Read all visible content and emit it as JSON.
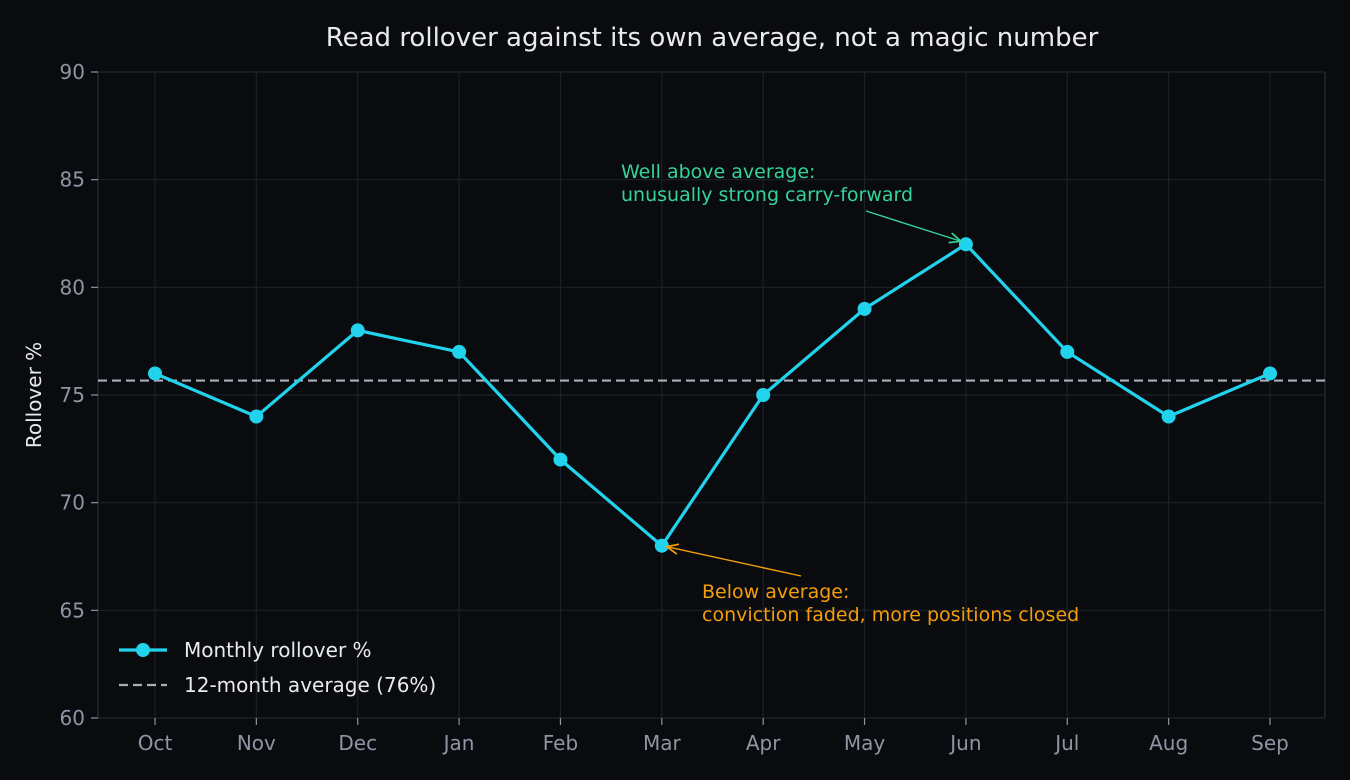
{
  "chart_data": {
    "type": "line",
    "title": "Read rollover against its own average, not a magic number",
    "xlabel": "",
    "ylabel": "Rollover %",
    "categories": [
      "Oct",
      "Nov",
      "Dec",
      "Jan",
      "Feb",
      "Mar",
      "Apr",
      "May",
      "Jun",
      "Jul",
      "Aug",
      "Sep"
    ],
    "series": [
      {
        "name": "Monthly rollover %",
        "values": [
          76,
          74,
          78,
          77,
          72,
          68,
          75,
          79,
          82,
          77,
          74,
          76
        ],
        "color": "#22d3ee"
      }
    ],
    "reference_line": {
      "name": "12-month average (76%)",
      "value": 75.67,
      "color": "#a8afbb",
      "style": "dashed"
    },
    "ylim": [
      60,
      90
    ],
    "yticks": [
      60,
      65,
      70,
      75,
      80,
      85,
      90
    ],
    "grid": true,
    "legend_position": "bottom-left",
    "annotations": [
      {
        "lines": [
          "Well above average:",
          "unusually strong carry-forward"
        ],
        "target_category": "Jun",
        "target_value": 82,
        "color": "#34d399"
      },
      {
        "lines": [
          "Below average:",
          "conviction faded, more positions closed"
        ],
        "target_category": "Mar",
        "target_value": 68,
        "color": "#f59e0b"
      }
    ]
  }
}
